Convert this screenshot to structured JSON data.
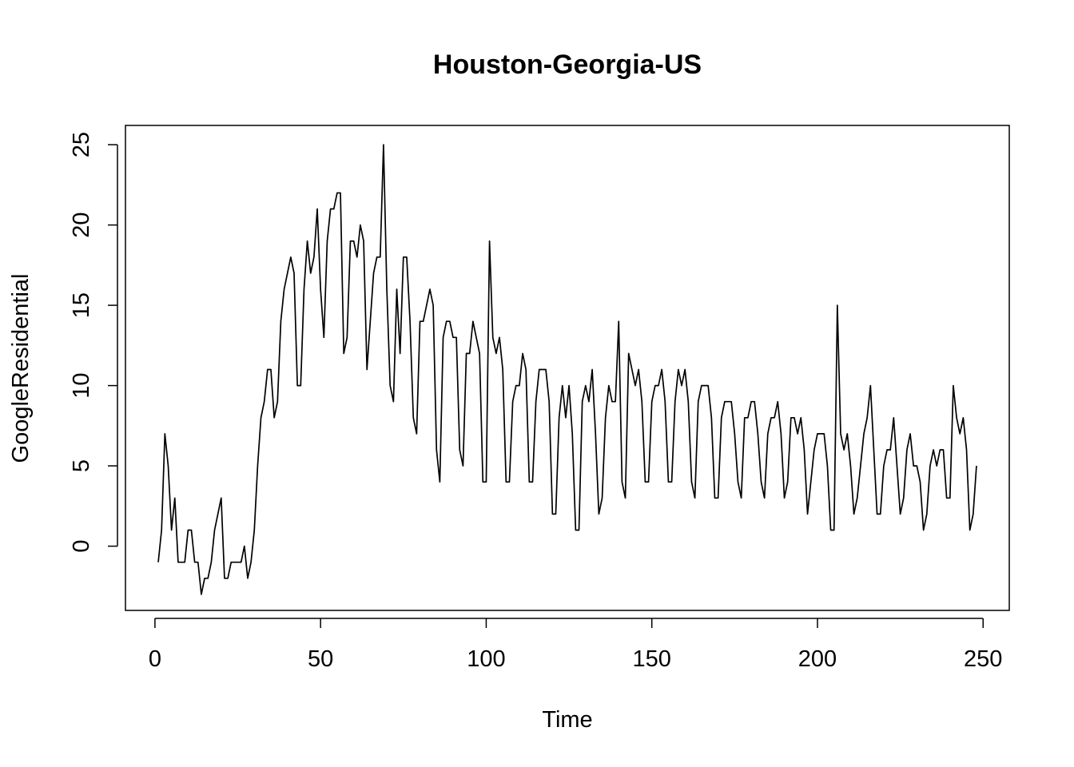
{
  "chart_data": {
    "type": "line",
    "title": "Houston-Georgia-US",
    "xlabel": "Time",
    "ylabel": "GoogleResidential",
    "xlim": [
      -8.9,
      257.9
    ],
    "ylim": [
      -4,
      26.2
    ],
    "x_ticks": [
      0,
      50,
      100,
      150,
      200,
      250
    ],
    "y_ticks": [
      0,
      5,
      10,
      15,
      20,
      25
    ],
    "grid": false,
    "series": [
      {
        "x_start": 1,
        "values": [
          -1,
          1,
          7,
          5,
          1,
          3,
          -1,
          -1,
          -1,
          1,
          1,
          -1,
          -1,
          -3,
          -2,
          -2,
          -1,
          1,
          2,
          3,
          -2,
          -2,
          -1,
          -1,
          -1,
          -1,
          0,
          -2,
          -1,
          1,
          5,
          8,
          9,
          11,
          11,
          8,
          9,
          14,
          16,
          17,
          18,
          17,
          10,
          10,
          16,
          19,
          17,
          18,
          21,
          16,
          13,
          19,
          21,
          21,
          22,
          22,
          12,
          13,
          19,
          19,
          18,
          20,
          19,
          11,
          14,
          17,
          18,
          18,
          25,
          16,
          10,
          9,
          16,
          12,
          18,
          18,
          14,
          8,
          7,
          14,
          14,
          15,
          16,
          15,
          6,
          4,
          13,
          14,
          14,
          13,
          13,
          6,
          5,
          12,
          12,
          14,
          13,
          12,
          4,
          4,
          19,
          13,
          12,
          13,
          11,
          4,
          4,
          9,
          10,
          10,
          12,
          11,
          4,
          4,
          9,
          11,
          11,
          11,
          9,
          2,
          2,
          8,
          10,
          8,
          10,
          7,
          1,
          1,
          9,
          10,
          9,
          11,
          7,
          2,
          3,
          8,
          10,
          9,
          9,
          14,
          4,
          3,
          12,
          11,
          10,
          11,
          9,
          4,
          4,
          9,
          10,
          10,
          11,
          9,
          4,
          4,
          9,
          11,
          10,
          11,
          9,
          4,
          3,
          9,
          10,
          10,
          10,
          8,
          3,
          3,
          8,
          9,
          9,
          9,
          7,
          4,
          3,
          8,
          8,
          9,
          9,
          7,
          4,
          3,
          7,
          8,
          8,
          9,
          7,
          3,
          4,
          8,
          8,
          7,
          8,
          6,
          2,
          4,
          6,
          7,
          7,
          7,
          5,
          1,
          1,
          15,
          7,
          6,
          7,
          5,
          2,
          3,
          5,
          7,
          8,
          10,
          6,
          2,
          2,
          5,
          6,
          6,
          8,
          5,
          2,
          3,
          6,
          7,
          5,
          5,
          4,
          1,
          2,
          5,
          6,
          5,
          6,
          6,
          3,
          3,
          10,
          8,
          7,
          8,
          6,
          1,
          2,
          5
        ]
      }
    ]
  }
}
